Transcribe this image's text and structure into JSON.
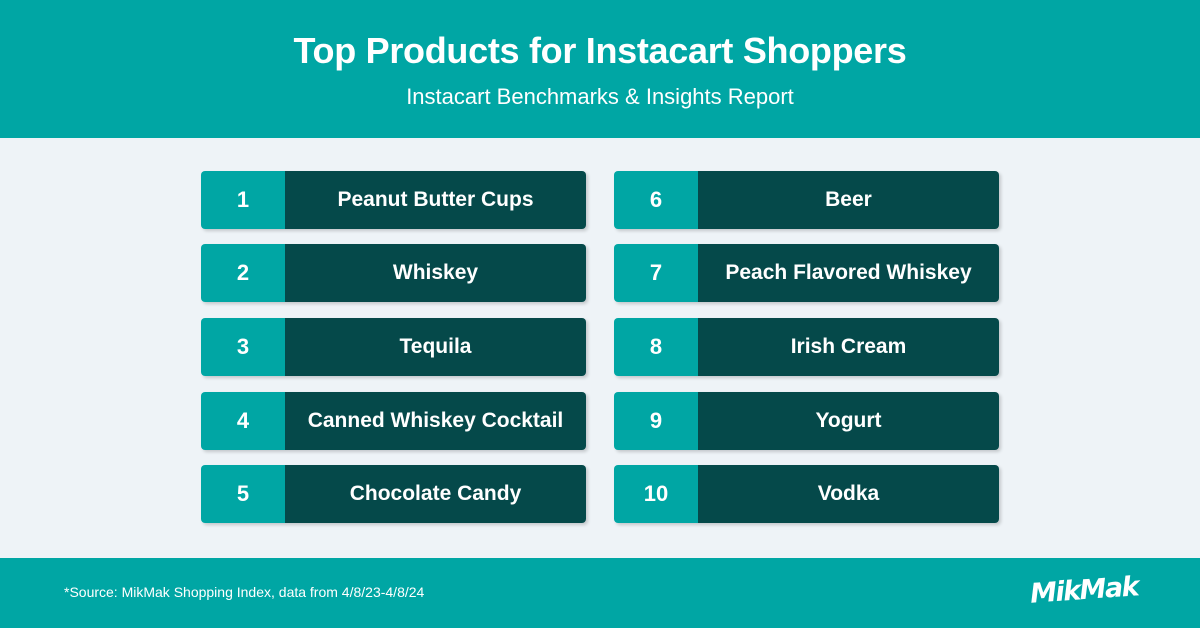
{
  "header": {
    "title": "Top Products for Instacart Shoppers",
    "subtitle": "Instacart Benchmarks & Insights Report"
  },
  "products": [
    {
      "rank": "1",
      "name": "Peanut Butter Cups"
    },
    {
      "rank": "2",
      "name": "Whiskey"
    },
    {
      "rank": "3",
      "name": "Tequila"
    },
    {
      "rank": "4",
      "name": "Canned Whiskey Cocktail"
    },
    {
      "rank": "5",
      "name": "Chocolate Candy"
    },
    {
      "rank": "6",
      "name": "Beer"
    },
    {
      "rank": "7",
      "name": "Peach Flavored Whiskey"
    },
    {
      "rank": "8",
      "name": "Irish Cream"
    },
    {
      "rank": "9",
      "name": "Yogurt"
    },
    {
      "rank": "10",
      "name": "Vodka"
    }
  ],
  "footer": {
    "source": "*Source: MikMak Shopping Index, data from 4/8/23-4/8/24",
    "logo": "MikMak"
  },
  "colors": {
    "teal": "#00a6a4",
    "dark_teal": "#05494a",
    "background": "#eef3f7"
  }
}
